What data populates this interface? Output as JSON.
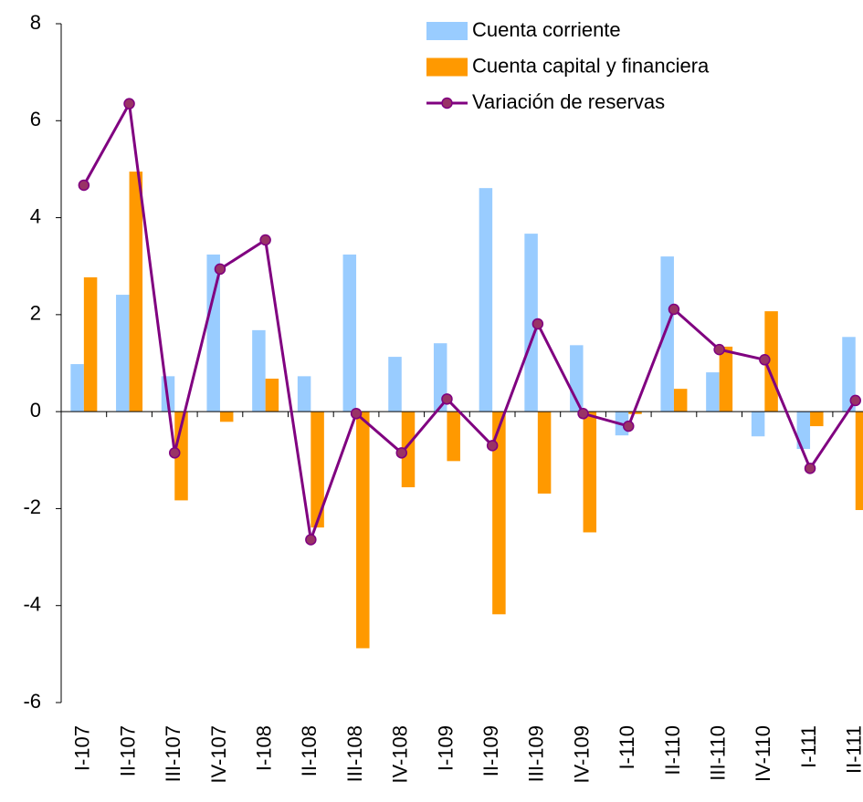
{
  "chart_data": {
    "type": "bar_line",
    "categories": [
      "I-107",
      "II-107",
      "III-107",
      "IV-107",
      "I-108",
      "II-108",
      "III-108",
      "IV-108",
      "I-109",
      "II-109",
      "III-109",
      "IV-109",
      "I-110",
      "II-110",
      "III-110",
      "IV-110",
      "I-111",
      "II-111"
    ],
    "series": [
      {
        "name": "Cuenta corriente",
        "type": "bar",
        "color": "#99ccff",
        "values": [
          0.98,
          2.41,
          0.73,
          3.24,
          1.68,
          0.73,
          3.24,
          1.13,
          1.41,
          4.61,
          3.67,
          1.37,
          -0.49,
          3.2,
          0.81,
          -0.51,
          -0.77,
          1.54
        ]
      },
      {
        "name": "Cuenta capital y financiera",
        "type": "bar",
        "color": "#ff9900",
        "values": [
          2.77,
          4.95,
          -1.83,
          -0.21,
          0.68,
          -2.39,
          -4.88,
          -1.56,
          -1.02,
          -4.18,
          -1.69,
          -2.49,
          -0.05,
          0.47,
          1.34,
          2.07,
          -0.3,
          -2.03
        ]
      },
      {
        "name": "Variación de reservas",
        "type": "line",
        "color": "#800080",
        "values": [
          4.67,
          6.35,
          -0.85,
          2.94,
          3.54,
          -2.64,
          -0.04,
          -0.85,
          0.26,
          -0.7,
          1.81,
          -0.04,
          -0.3,
          2.11,
          1.28,
          1.07,
          -1.17,
          0.23
        ]
      }
    ],
    "ylim": [
      -6,
      8
    ],
    "yticks": [
      -6,
      -4,
      -2,
      0,
      2,
      4,
      6,
      8
    ],
    "grid": false,
    "legend": "top-right"
  }
}
